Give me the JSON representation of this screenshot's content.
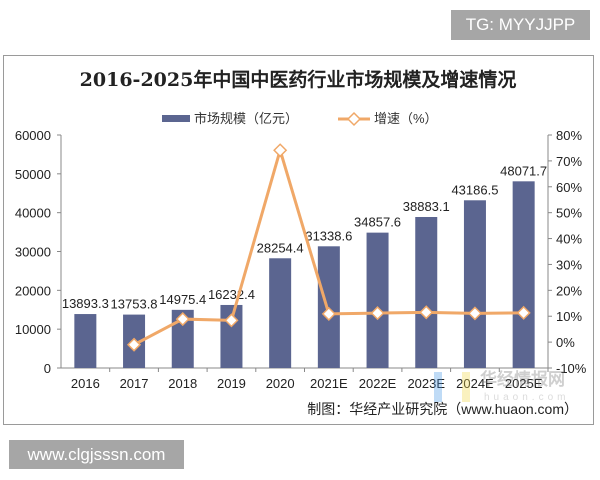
{
  "watermarks": {
    "top": "TG: MYYJJPP",
    "bottom": "www.clgjsssn.com"
  },
  "chart_data": {
    "type": "bar+line",
    "title": "2016-2025年中国中医药行业市场规模及增速情况",
    "categories": [
      "2016",
      "2017",
      "2018",
      "2019",
      "2020",
      "2021E",
      "2022E",
      "2023E",
      "2024E",
      "2025E"
    ],
    "series": [
      {
        "name": "市场规模（亿元）",
        "type": "bar",
        "axis": "left",
        "color": "#5b6590",
        "values": [
          13893.3,
          13753.8,
          14975.4,
          16232.4,
          28254.4,
          31338.6,
          34857.6,
          38883.1,
          43186.5,
          48071.7
        ],
        "labels": [
          "13893.3",
          "13753.8",
          "14975.4",
          "16232.4",
          "28254.4",
          "31338.6",
          "34857.6",
          "38883.1",
          "43186.5",
          "48071.7"
        ]
      },
      {
        "name": "增速（%）",
        "type": "line",
        "axis": "right",
        "color": "#f0a868",
        "marker": "diamond",
        "values": [
          null,
          -1.0,
          8.9,
          8.4,
          74.1,
          10.9,
          11.2,
          11.5,
          11.1,
          11.3
        ]
      }
    ],
    "y_left": {
      "ylim": [
        0,
        60000
      ],
      "ticks": [
        "0",
        "10000",
        "20000",
        "30000",
        "40000",
        "50000",
        "60000"
      ]
    },
    "y_right": {
      "ylim": [
        -10,
        80
      ],
      "ticks": [
        "-10%",
        "0%",
        "10%",
        "20%",
        "30%",
        "40%",
        "50%",
        "60%",
        "70%",
        "80%"
      ]
    },
    "legend": "top",
    "grid": false,
    "source": "制图：华经产业研究院（www.huaon.com）",
    "logo_watermark": "华经情报网 huaon.com"
  }
}
